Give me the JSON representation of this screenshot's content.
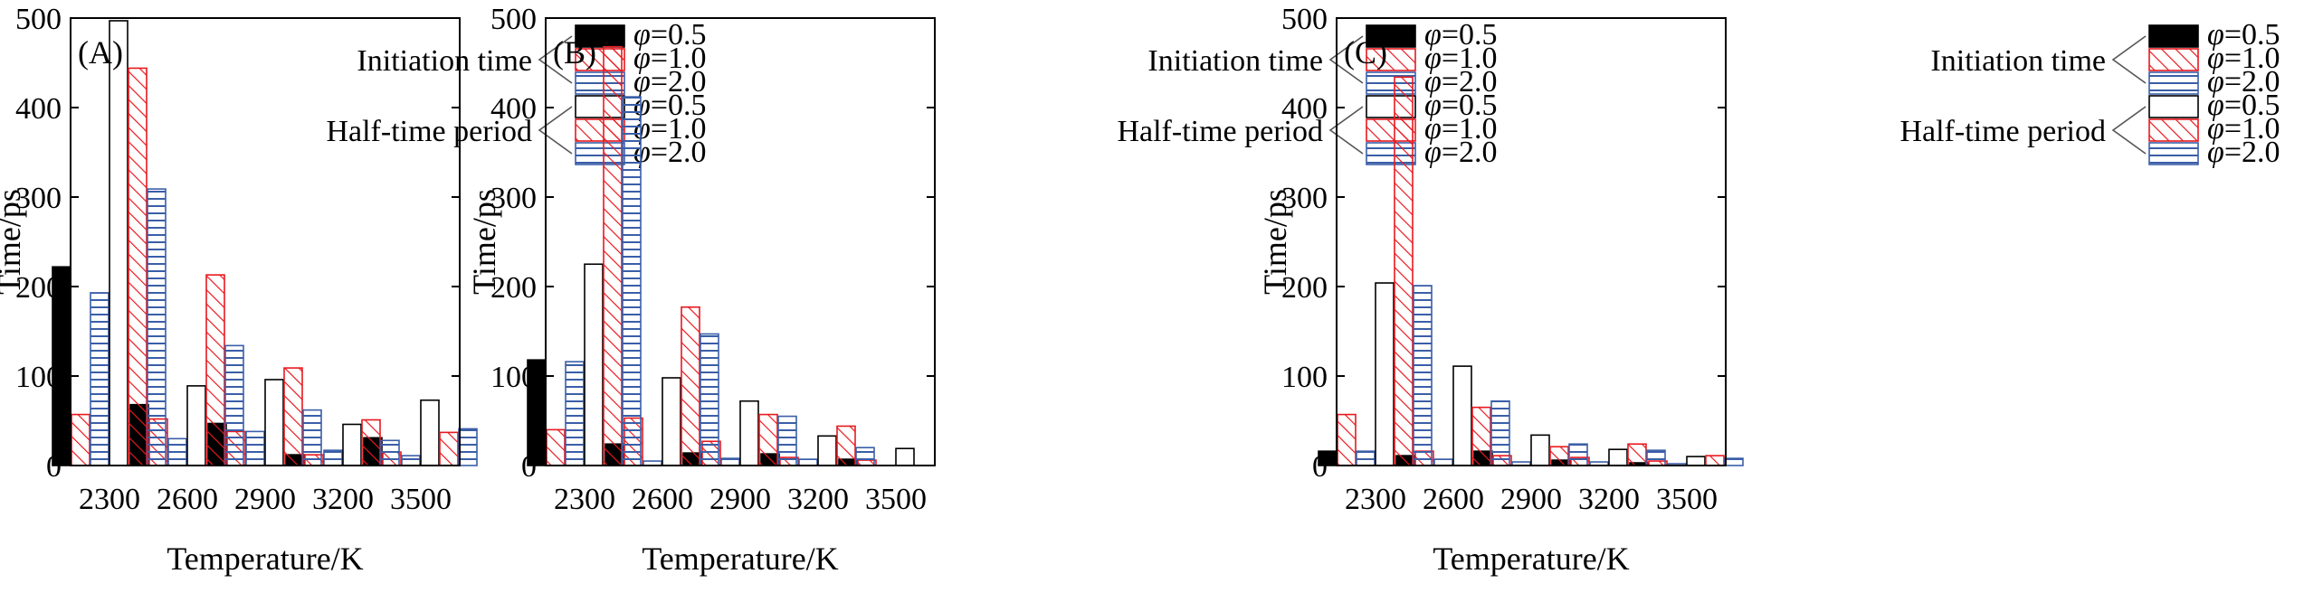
{
  "figure": {
    "group_labels": {
      "initiation": "Initiation time",
      "half": "Half-time period"
    },
    "legend_entries": [
      {
        "group": "initiation",
        "phi": "φ",
        "value_text": "=0.5",
        "key": "init_0.5"
      },
      {
        "group": "initiation",
        "phi": "φ",
        "value_text": "=1.0",
        "key": "init_1.0"
      },
      {
        "group": "initiation",
        "phi": "φ",
        "value_text": "=2.0",
        "key": "init_2.0"
      },
      {
        "group": "half",
        "phi": "φ",
        "value_text": "=0.5",
        "key": "half_0.5"
      },
      {
        "group": "half",
        "phi": "φ",
        "value_text": "=1.0",
        "key": "half_1.0"
      },
      {
        "group": "half",
        "phi": "φ",
        "value_text": "=2.0",
        "key": "half_2.0"
      }
    ],
    "colors": {
      "black": "#000000",
      "red": "#e8191f",
      "blue": "#3a5ea8",
      "axis": "#000000"
    }
  },
  "chart_data": [
    {
      "panel_label": "(A)",
      "type": "bar",
      "title": "",
      "xlabel": "Temperature/K",
      "ylabel": "Time/ps",
      "categories": [
        "2300",
        "2600",
        "2900",
        "3200",
        "3500"
      ],
      "ylim": [
        0,
        500
      ],
      "yticks": [
        0,
        100,
        200,
        300,
        400,
        500
      ],
      "series": [
        {
          "name": "Initiation time φ=0.5",
          "key": "init_0.5",
          "values": [
            222,
            68,
            47,
            12,
            31
          ]
        },
        {
          "name": "Initiation time φ=1.0",
          "key": "init_1.0",
          "values": [
            57,
            52,
            38,
            12,
            15
          ]
        },
        {
          "name": "Initiation time φ=2.0",
          "key": "init_2.0",
          "values": [
            193,
            30,
            38,
            17,
            11
          ]
        },
        {
          "name": "Half-time period φ=0.5",
          "key": "half_0.5",
          "values": [
            497,
            89,
            96,
            46,
            73
          ]
        },
        {
          "name": "Half-time period φ=1.0",
          "key": "half_1.0",
          "values": [
            444,
            213,
            109,
            51,
            37
          ]
        },
        {
          "name": "Half-time period φ=2.0",
          "key": "half_2.0",
          "values": [
            309,
            134,
            62,
            28,
            41
          ]
        }
      ]
    },
    {
      "panel_label": "(B)",
      "type": "bar",
      "title": "",
      "xlabel": "Temperature/K",
      "ylabel": "Time/ps",
      "categories": [
        "2300",
        "2600",
        "2900",
        "3200",
        "3500"
      ],
      "ylim": [
        0,
        500
      ],
      "yticks": [
        0,
        100,
        200,
        300,
        400,
        500
      ],
      "series": [
        {
          "name": "Initiation time φ=0.5",
          "key": "init_0.5",
          "values": [
            118,
            24,
            14,
            13,
            7
          ]
        },
        {
          "name": "Initiation time φ=1.0",
          "key": "init_1.0",
          "values": [
            40,
            53,
            27,
            9,
            6
          ]
        },
        {
          "name": "Initiation time φ=2.0",
          "key": "init_2.0",
          "values": [
            116,
            5,
            8,
            7,
            0
          ]
        },
        {
          "name": "Half-time period φ=0.5",
          "key": "half_0.5",
          "values": [
            225,
            98,
            72,
            33,
            19
          ]
        },
        {
          "name": "Half-time period φ=1.0",
          "key": "half_1.0",
          "values": [
            468,
            177,
            57,
            44,
            0
          ]
        },
        {
          "name": "Half-time period φ=2.0",
          "key": "half_2.0",
          "values": [
            412,
            147,
            55,
            20,
            0
          ]
        }
      ]
    },
    {
      "panel_label": "(C)",
      "type": "bar",
      "title": "",
      "xlabel": "Temperature/K",
      "ylabel": "Time/ps",
      "categories": [
        "2300",
        "2600",
        "2900",
        "3200",
        "3500"
      ],
      "ylim": [
        0,
        500
      ],
      "yticks": [
        0,
        100,
        200,
        300,
        400,
        500
      ],
      "series": [
        {
          "name": "Initiation time φ=0.5",
          "key": "init_0.5",
          "values": [
            16,
            11,
            16,
            6,
            3
          ]
        },
        {
          "name": "Initiation time φ=1.0",
          "key": "init_1.0",
          "values": [
            57,
            16,
            11,
            9,
            5
          ]
        },
        {
          "name": "Initiation time φ=2.0",
          "key": "init_2.0",
          "values": [
            16,
            7,
            4,
            4,
            2
          ]
        },
        {
          "name": "Half-time period φ=0.5",
          "key": "half_0.5",
          "values": [
            204,
            111,
            34,
            18,
            10
          ]
        },
        {
          "name": "Half-time period φ=1.0",
          "key": "half_1.0",
          "values": [
            434,
            65,
            21,
            24,
            11
          ]
        },
        {
          "name": "Half-time period φ=2.0",
          "key": "half_2.0",
          "values": [
            201,
            72,
            24,
            17,
            8
          ]
        }
      ]
    }
  ]
}
